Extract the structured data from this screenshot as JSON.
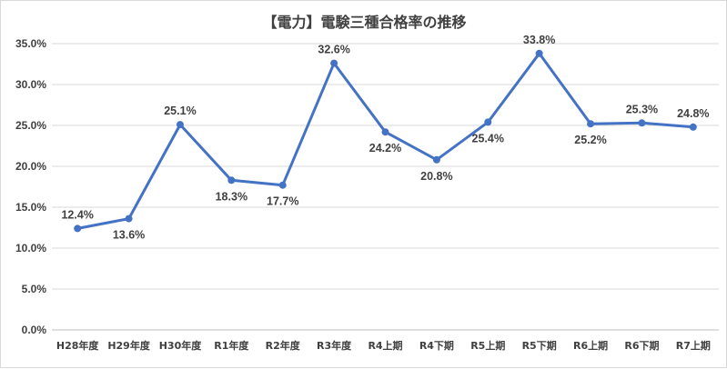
{
  "chart_data": {
    "type": "line",
    "title": "【電力】電験三種合格率の推移",
    "xlabel": "",
    "ylabel": "",
    "ylim": [
      0,
      35
    ],
    "ytick_labels": [
      "0.0%",
      "5.0%",
      "10.0%",
      "15.0%",
      "20.0%",
      "25.0%",
      "30.0%",
      "35.0%"
    ],
    "grid": true,
    "legend": "none",
    "line_color": "#4472c4",
    "categories": [
      "H28年度",
      "H29年度",
      "H30年度",
      "R1年度",
      "R2年度",
      "R3年度",
      "R4上期",
      "R4下期",
      "R5上期",
      "R5下期",
      "R6上期",
      "R6下期",
      "R7上期"
    ],
    "values": [
      12.4,
      13.6,
      25.1,
      18.3,
      17.7,
      32.6,
      24.2,
      20.8,
      25.4,
      33.8,
      25.2,
      25.3,
      24.8
    ],
    "data_labels": [
      "12.4%",
      "13.6%",
      "25.1%",
      "18.3%",
      "17.7%",
      "32.6%",
      "24.2%",
      "20.8%",
      "25.4%",
      "33.8%",
      "25.2%",
      "25.3%",
      "24.8%"
    ]
  }
}
